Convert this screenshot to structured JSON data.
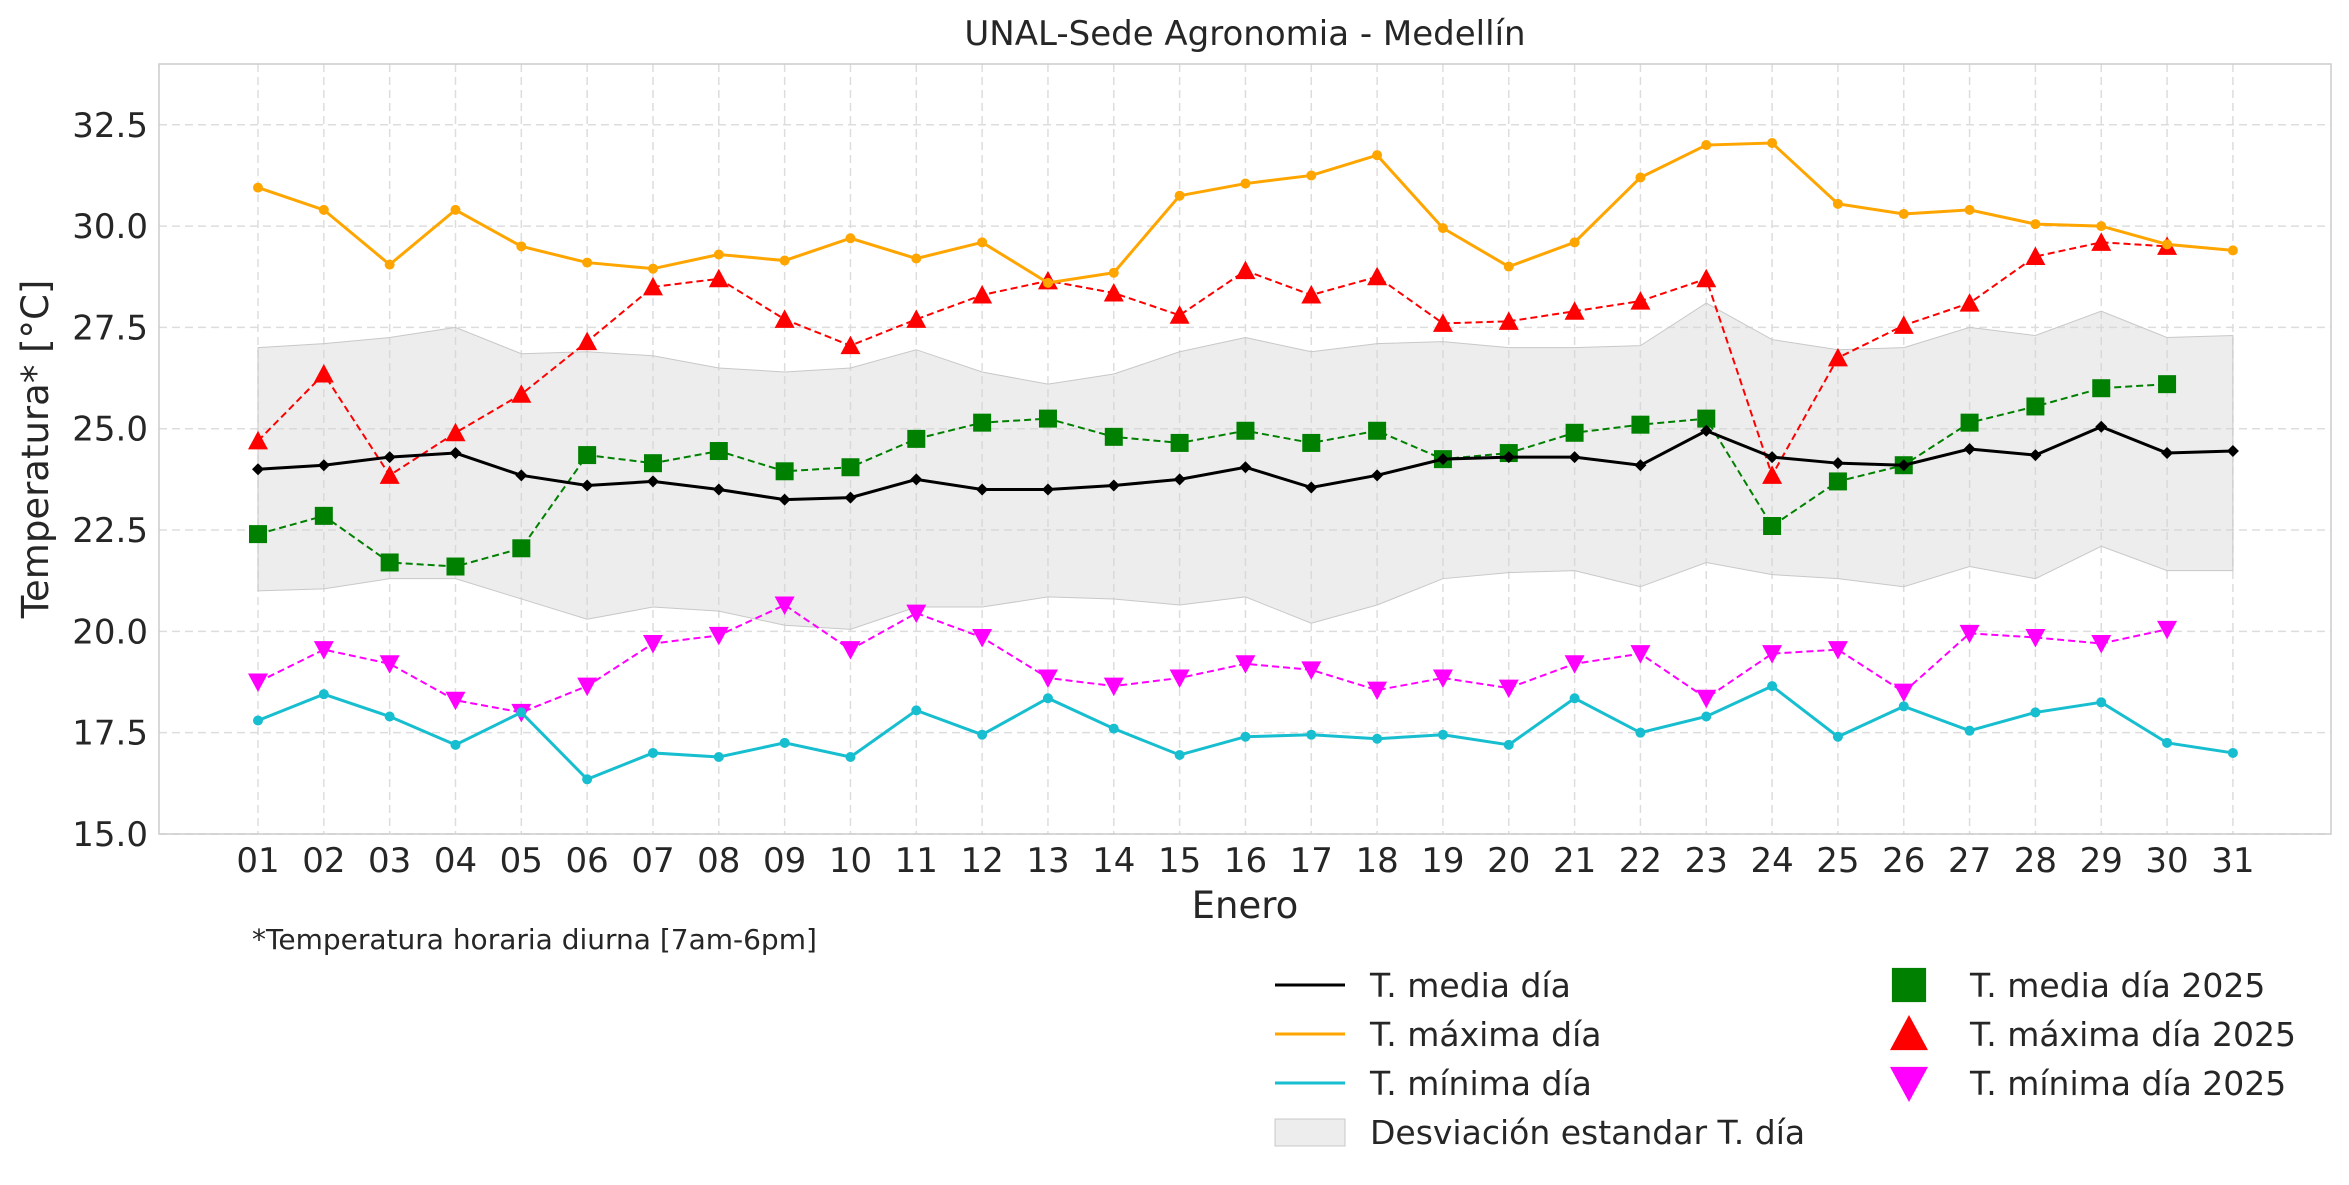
{
  "chart_data": {
    "type": "line",
    "title": "UNAL-Sede Agronomia - Medellín",
    "xlabel": "Enero",
    "ylabel": "Temperatura* [°C]",
    "footnote": "*Temperatura horaria diurna [7am-6pm]",
    "categories": [
      "01",
      "02",
      "03",
      "04",
      "05",
      "06",
      "07",
      "08",
      "09",
      "10",
      "11",
      "12",
      "13",
      "14",
      "15",
      "16",
      "17",
      "18",
      "19",
      "20",
      "21",
      "22",
      "23",
      "24",
      "25",
      "26",
      "27",
      "28",
      "29",
      "30",
      "31"
    ],
    "ylim": [
      15.0,
      34.0
    ],
    "yticks": [
      "15.0",
      "17.5",
      "20.0",
      "22.5",
      "25.0",
      "27.5",
      "30.0",
      "32.5"
    ],
    "grid": true,
    "legend_position": "bottom-right, below axes",
    "band": {
      "name": "Desviación estandar T. día",
      "color": "#d9d9d9",
      "upper": [
        27.0,
        27.1,
        27.25,
        27.5,
        26.85,
        26.9,
        26.8,
        26.5,
        26.4,
        26.5,
        26.95,
        26.4,
        26.1,
        26.35,
        26.9,
        27.25,
        26.9,
        27.1,
        27.15,
        27.0,
        27.0,
        27.05,
        28.1,
        27.2,
        26.95,
        27.0,
        27.5,
        27.3,
        27.9,
        27.25,
        27.3
      ],
      "lower": [
        21.0,
        21.05,
        21.3,
        21.3,
        20.8,
        20.3,
        20.6,
        20.5,
        20.15,
        20.05,
        20.6,
        20.6,
        20.85,
        20.8,
        20.65,
        20.85,
        20.2,
        20.65,
        21.3,
        21.45,
        21.5,
        21.1,
        21.7,
        21.4,
        21.3,
        21.1,
        21.6,
        21.3,
        22.1,
        21.5,
        21.5
      ]
    },
    "series": [
      {
        "name": "T. media día",
        "color": "#000000",
        "style": "solid",
        "marker": "diamond",
        "values": [
          24.0,
          24.1,
          24.3,
          24.4,
          23.85,
          23.6,
          23.7,
          23.5,
          23.25,
          23.3,
          23.75,
          23.5,
          23.5,
          23.6,
          23.75,
          24.05,
          23.55,
          23.85,
          24.25,
          24.3,
          24.3,
          24.1,
          24.95,
          24.3,
          24.15,
          24.1,
          24.5,
          24.35,
          25.05,
          24.4,
          24.45
        ]
      },
      {
        "name": "T. máxima día",
        "color": "#ffa500",
        "style": "solid",
        "marker": "circle",
        "values": [
          30.95,
          30.4,
          29.05,
          30.4,
          29.5,
          29.1,
          28.95,
          29.3,
          29.15,
          29.7,
          29.2,
          29.6,
          28.6,
          28.85,
          30.75,
          31.05,
          31.25,
          31.75,
          29.95,
          29.0,
          29.6,
          31.2,
          32.0,
          32.05,
          30.55,
          30.3,
          30.4,
          30.05,
          30.0,
          29.55,
          29.4
        ]
      },
      {
        "name": "T. mínima día",
        "color": "#17becf",
        "style": "solid",
        "marker": "circle",
        "values": [
          17.8,
          18.45,
          17.9,
          17.2,
          18.0,
          16.35,
          17.0,
          16.9,
          17.25,
          16.9,
          18.05,
          17.45,
          18.35,
          17.6,
          16.95,
          17.4,
          17.45,
          17.35,
          17.45,
          17.2,
          18.35,
          17.5,
          17.9,
          18.65,
          17.4,
          18.15,
          17.55,
          18.0,
          18.25,
          17.25,
          17.0
        ]
      },
      {
        "name": "T. media día 2025",
        "color": "#008000",
        "style": "dashed",
        "marker": "square",
        "values": [
          22.4,
          22.85,
          21.7,
          21.6,
          22.05,
          24.35,
          24.15,
          24.45,
          23.95,
          24.05,
          24.75,
          25.15,
          25.25,
          24.8,
          24.65,
          24.95,
          24.65,
          24.95,
          24.25,
          24.4,
          24.9,
          25.1,
          25.25,
          22.6,
          23.7,
          24.1,
          25.15,
          25.55,
          26.0,
          26.1,
          null
        ]
      },
      {
        "name": "T. máxima día 2025",
        "color": "#ff0000",
        "style": "dashed",
        "marker": "triangle-up",
        "values": [
          24.7,
          26.35,
          23.85,
          24.9,
          25.85,
          27.15,
          28.5,
          28.7,
          27.7,
          27.05,
          27.7,
          28.3,
          28.65,
          28.35,
          27.8,
          28.9,
          28.3,
          28.75,
          27.6,
          27.65,
          27.9,
          28.15,
          28.7,
          23.85,
          26.75,
          27.55,
          28.1,
          29.25,
          29.6,
          29.5,
          null
        ]
      },
      {
        "name": "T. mínima día 2025",
        "color": "#ff00ff",
        "style": "dashed",
        "marker": "triangle-down",
        "values": [
          18.75,
          19.55,
          19.2,
          18.3,
          18.0,
          18.65,
          19.7,
          19.9,
          20.65,
          19.55,
          20.45,
          19.85,
          18.85,
          18.65,
          18.85,
          19.2,
          19.05,
          18.55,
          18.85,
          18.6,
          19.2,
          19.45,
          18.35,
          19.45,
          19.55,
          18.5,
          19.95,
          19.85,
          19.7,
          20.05,
          null
        ]
      }
    ]
  }
}
